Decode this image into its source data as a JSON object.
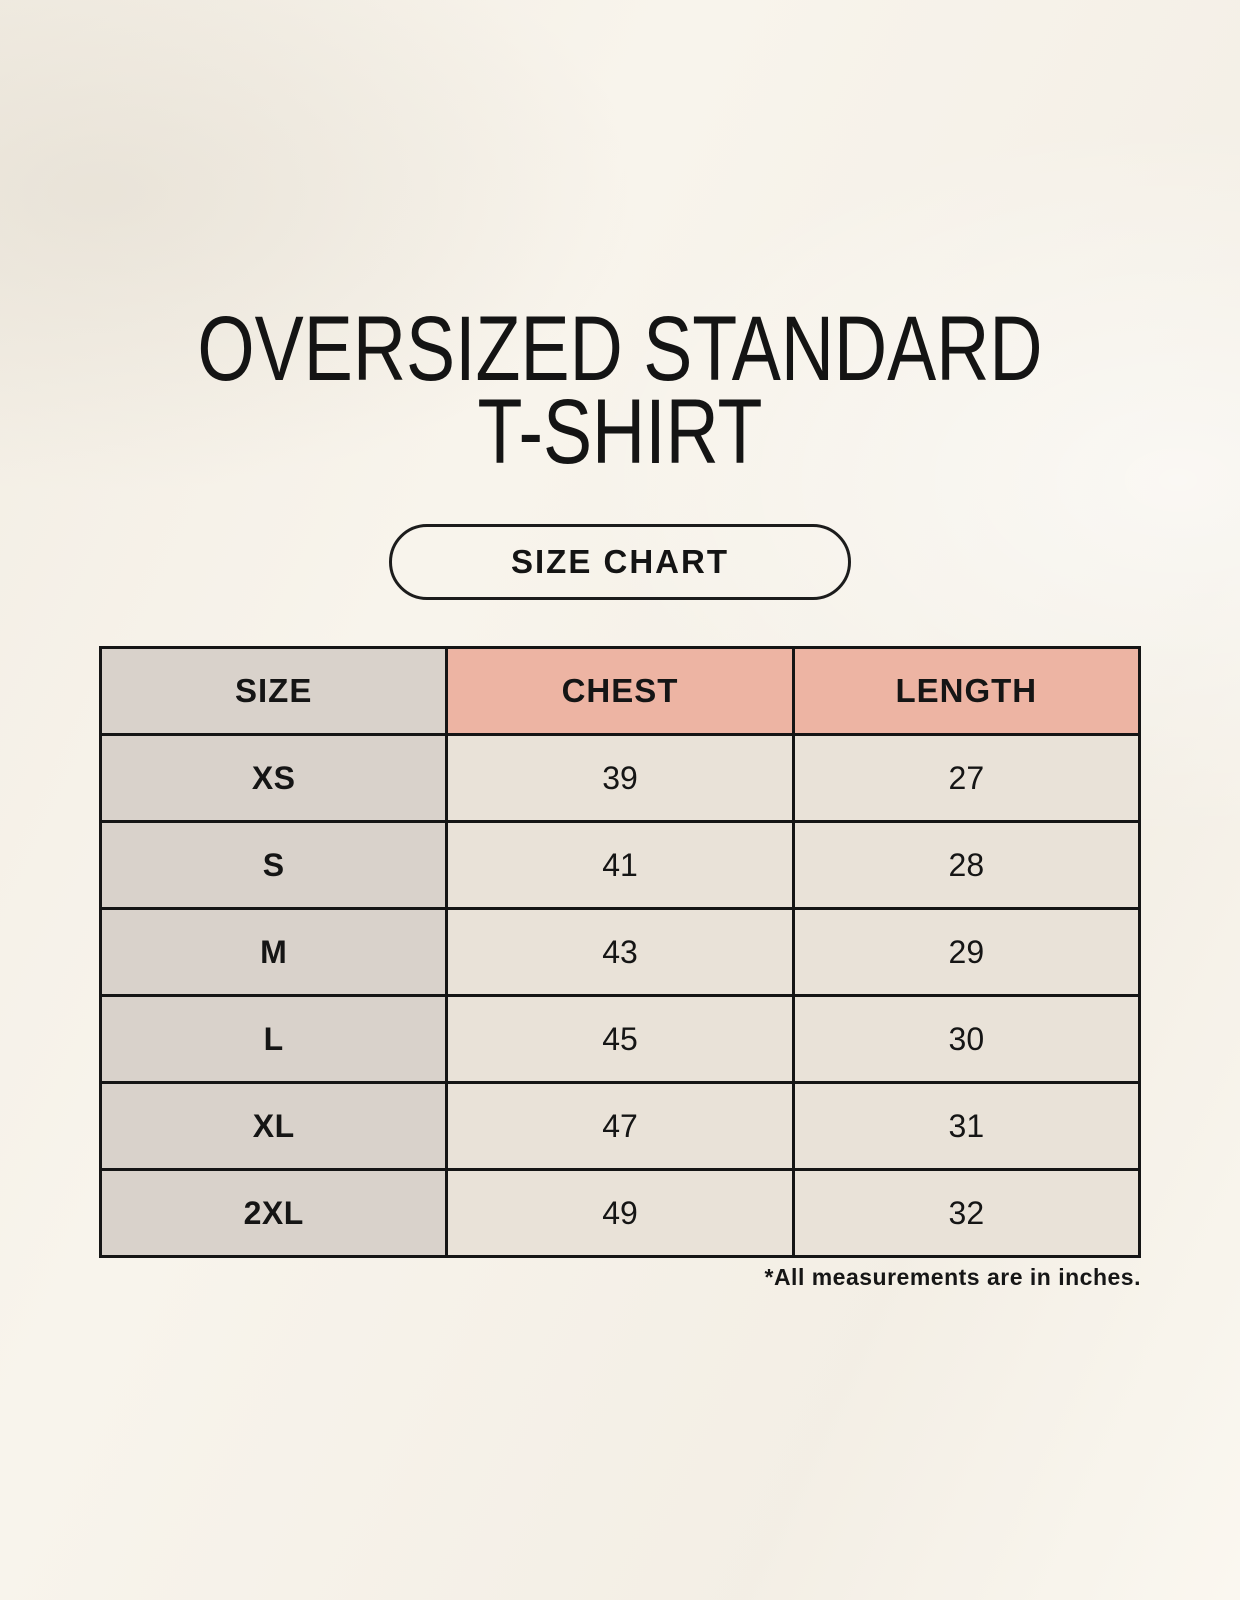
{
  "page": {
    "title_line1": "OVERSIZED STANDARD",
    "title_line2": "T-SHIRT",
    "size_chart_button": "SIZE CHART",
    "footnote": "*All measurements are in inches."
  },
  "colors": {
    "background": "#f8f4ec",
    "header_pink": "#edb4a3",
    "label_gray": "#d9d2cb",
    "cell_cream": "#e9e2d8",
    "border": "#151515",
    "text": "#141414"
  },
  "chart_data": {
    "type": "table",
    "title": "OVERSIZED STANDARD T-SHIRT — SIZE CHART",
    "units": "inches",
    "columns": [
      "SIZE",
      "CHEST",
      "LENGTH"
    ],
    "rows": [
      [
        "XS",
        "39",
        "27"
      ],
      [
        "S",
        "41",
        "28"
      ],
      [
        "M",
        "43",
        "29"
      ],
      [
        "L",
        "45",
        "30"
      ],
      [
        "XL",
        "47",
        "31"
      ],
      [
        "2XL",
        "49",
        "32"
      ]
    ]
  }
}
